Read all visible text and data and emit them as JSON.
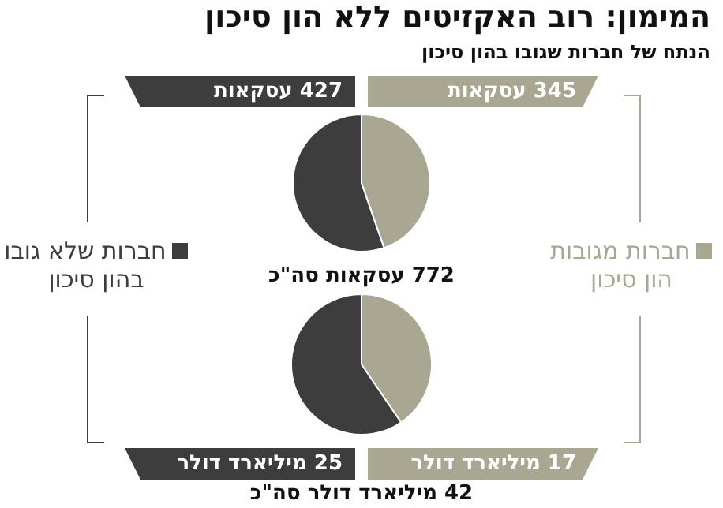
{
  "chart_data": [
    {
      "type": "pie",
      "title": "המימון: רוב האקזיטים ללא הון סיכון",
      "subtitle": "הנתח של חברות שגובו בהון סיכון",
      "categories": [
        "חברות מגובות הון סיכון",
        "חברות שלא גובו בהון סיכון"
      ],
      "values": [
        345,
        427
      ],
      "colors": [
        "#a9a792",
        "#3d3d3d"
      ],
      "value_labels": [
        "345 עסקאות",
        "427 עסקאות"
      ],
      "annotations": [
        "772 עסקאות סה\"כ"
      ],
      "legend": "left"
    },
    {
      "type": "pie",
      "categories": [
        null,
        null
      ],
      "values": [
        17,
        25
      ],
      "colors": [
        "#a9a792",
        "#3d3d3d"
      ],
      "value_labels": [
        "17 מיליארד דולר",
        "25 מיליארד דולר"
      ],
      "annotations": [
        "42 מיליארד דולר סה\"כ"
      ]
    }
  ]
}
